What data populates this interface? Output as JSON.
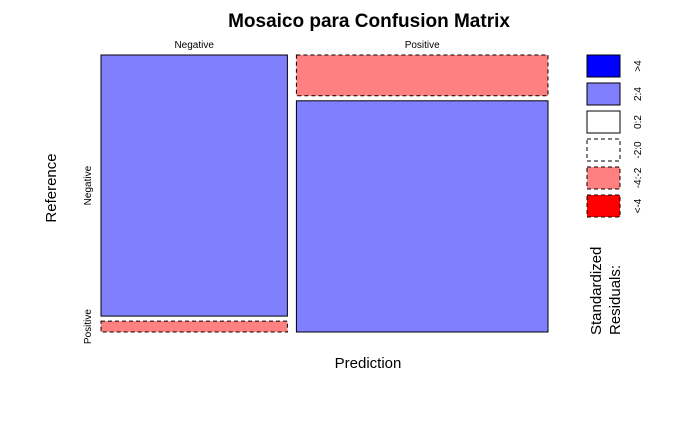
{
  "chart_data": {
    "type": "mosaic",
    "title": "Mosaico para Confusion Matrix",
    "xlabel": "Prediction",
    "ylabel": "Reference",
    "x_categories": [
      "Negative",
      "Positive"
    ],
    "y_categories": [
      "Negative",
      "Positive"
    ],
    "column_widths": [
      0.4,
      0.54
    ],
    "cells": [
      {
        "prediction": "Negative",
        "reference": "Negative",
        "share": 0.96,
        "residual_class": "2:4",
        "color": "#8080ff",
        "dashed": false
      },
      {
        "prediction": "Negative",
        "reference": "Positive",
        "share": 0.04,
        "residual_class": "-4:-2",
        "color": "#ff8080",
        "dashed": true
      },
      {
        "prediction": "Positive",
        "reference": "Negative",
        "share": 0.15,
        "residual_class": "-4:-2",
        "color": "#ff8080",
        "dashed": true
      },
      {
        "prediction": "Positive",
        "reference": "Positive",
        "share": 0.85,
        "residual_class": "2:4",
        "color": "#8080ff",
        "dashed": false
      }
    ],
    "legend": {
      "title_lines": [
        "Standardized",
        "Residuals:"
      ],
      "entries": [
        {
          "label": ">4",
          "color": "#0000ff",
          "dashed": false
        },
        {
          "label": "2:4",
          "color": "#8080ff",
          "dashed": false
        },
        {
          "label": "0:2",
          "color": "#ffffff",
          "dashed": false
        },
        {
          "label": "-2:0",
          "color": "#ffffff",
          "dashed": true
        },
        {
          "label": "-4:-2",
          "color": "#ff8080",
          "dashed": true
        },
        {
          "label": "<-4",
          "color": "#ff0000",
          "dashed": true
        }
      ]
    }
  }
}
